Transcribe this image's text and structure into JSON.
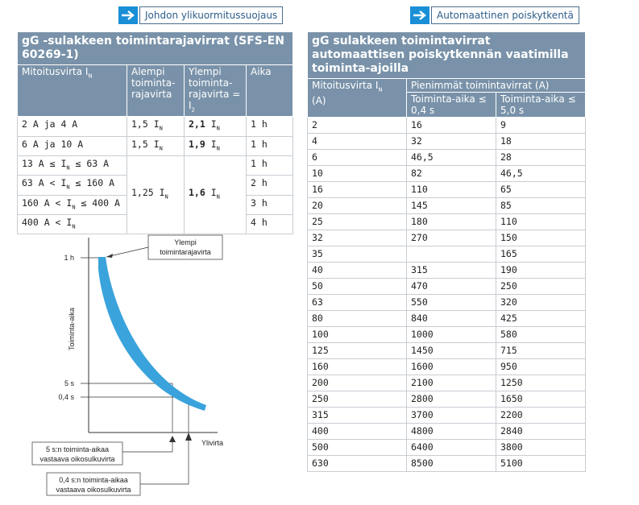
{
  "links": {
    "left": "Johdon ylikuormitussuojaus",
    "right": "Automaattinen poiskytkentä"
  },
  "table1": {
    "title": "gG -sulakkeen toimintarajavirrat (SFS-EN 60269-1)",
    "headers": {
      "col1": "Mitoitusvirta I",
      "col1_sub": "N",
      "col2": "Alempi toiminta-rajavirta",
      "col3": "Ylempi toiminta-rajavirta = I",
      "col3_sub": "2",
      "col4": "Aika"
    },
    "rows": [
      {
        "rating": "2 A ja 4 A",
        "lower": "1,5 I",
        "upper": "2,1",
        "upper_rest": " I",
        "time": "1 h"
      },
      {
        "rating": "6 A ja 10 A",
        "lower": "1,5 I",
        "upper": "1,9",
        "upper_rest": " I",
        "time": "1 h"
      },
      {
        "rating_a": "13 A ≤ I",
        "rating_b": " ≤ 63 A",
        "time": "1 h"
      },
      {
        "rating_a": "63 A < I",
        "rating_b": " ≤ 160 A",
        "time": "2 h"
      },
      {
        "rating_a": "160 A < I",
        "rating_b": " ≤ 400 A",
        "time": "3 h"
      },
      {
        "rating_a": "400 A < I",
        "rating_b": "",
        "time": "4 h"
      }
    ],
    "merged_lower": "1,25 I",
    "merged_upper": "1,6",
    "merged_upper_rest": " I",
    "sub_N": "N"
  },
  "table2": {
    "title": "gG sulakkeen toimintavirrat automaattisen poiskytkennän vaatimilla toiminta-ajoilla",
    "headers": {
      "col1": "Mitoitusvirta I",
      "col1_sub": "N",
      "col1_unit": "(A)",
      "group": "Pienimmät toimintavirrat (A)",
      "col2": "Toiminta-aika ≤ 0,4 s",
      "col3": "Toiminta-aika ≤ 5,0 s"
    },
    "rows": [
      [
        "2",
        "16",
        "9"
      ],
      [
        "4",
        "32",
        "18"
      ],
      [
        "6",
        "46,5",
        "28"
      ],
      [
        "10",
        "82",
        "46,5"
      ],
      [
        "16",
        "110",
        "65"
      ],
      [
        "20",
        "145",
        "85"
      ],
      [
        "25",
        "180",
        "110"
      ],
      [
        "32",
        "270",
        "150"
      ],
      [
        "35",
        "",
        "165"
      ],
      [
        "40",
        "315",
        "190"
      ],
      [
        "50",
        "470",
        "250"
      ],
      [
        "63",
        "550",
        "320"
      ],
      [
        "80",
        "840",
        "425"
      ],
      [
        "100",
        "1000",
        "580"
      ],
      [
        "125",
        "1450",
        "715"
      ],
      [
        "160",
        "1600",
        "950"
      ],
      [
        "200",
        "2100",
        "1250"
      ],
      [
        "250",
        "2800",
        "1650"
      ],
      [
        "315",
        "3700",
        "2200"
      ],
      [
        "400",
        "4800",
        "2840"
      ],
      [
        "500",
        "6400",
        "3800"
      ],
      [
        "630",
        "8500",
        "5100"
      ]
    ]
  },
  "diagram": {
    "y_axis_label": "Toiminta-aika",
    "x_axis_label": "Ylivirta",
    "tick_1h": "1 h",
    "tick_5s": "5 s",
    "tick_04s": "0,4 s",
    "callout_upper_1": "Ylempi",
    "callout_upper_2": "toimintarajavirta",
    "callout_5s_1": "5 s:n toiminta-aikaa",
    "callout_5s_2": "vastaava oikosulkuvirta",
    "callout_04s_1": "0,4  s:n toiminta-aikaa",
    "callout_04s_2": "vastaava oikosulkuvirta",
    "band_color": "#3aa3dc"
  }
}
